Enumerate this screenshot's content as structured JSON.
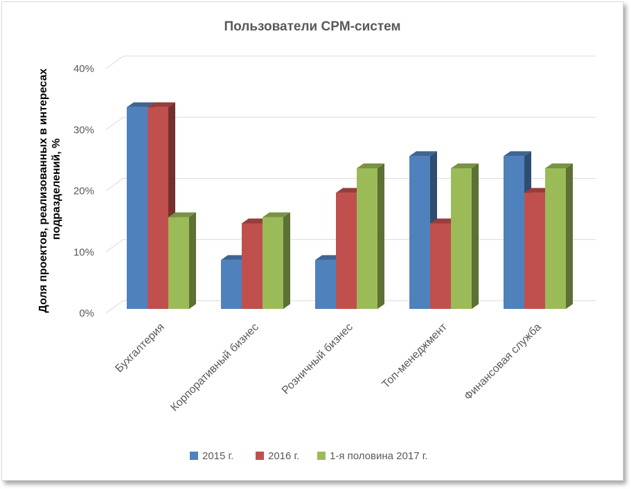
{
  "chart_data": {
    "type": "bar",
    "title": "Пользователи CPM-систем",
    "xlabel": "",
    "ylabel_line1": "Доля проектов, реализованных в интересах",
    "ylabel_line2": "подразделений, %",
    "categories": [
      "Бухгалтерия",
      "Корпоративный бизнес",
      "Розничный бизнес",
      "Топ-менеджмент",
      "Финансовая служба"
    ],
    "series": [
      {
        "name": "2015 г.",
        "values": [
          33,
          8,
          8,
          25,
          25
        ],
        "color": "#4f81bd"
      },
      {
        "name": "2016 г.",
        "values": [
          33,
          14,
          19,
          14,
          19
        ],
        "color": "#c0504d"
      },
      {
        "name": "1-я половина 2017 г.",
        "values": [
          15,
          15,
          23,
          23,
          23
        ],
        "color": "#9bbb59"
      }
    ],
    "ylim": [
      0,
      40
    ],
    "yticks": [
      "0%",
      "10%",
      "20%",
      "30%",
      "40%"
    ],
    "grid": true,
    "legend_position": "bottom",
    "style": "3d-clustered-column"
  }
}
